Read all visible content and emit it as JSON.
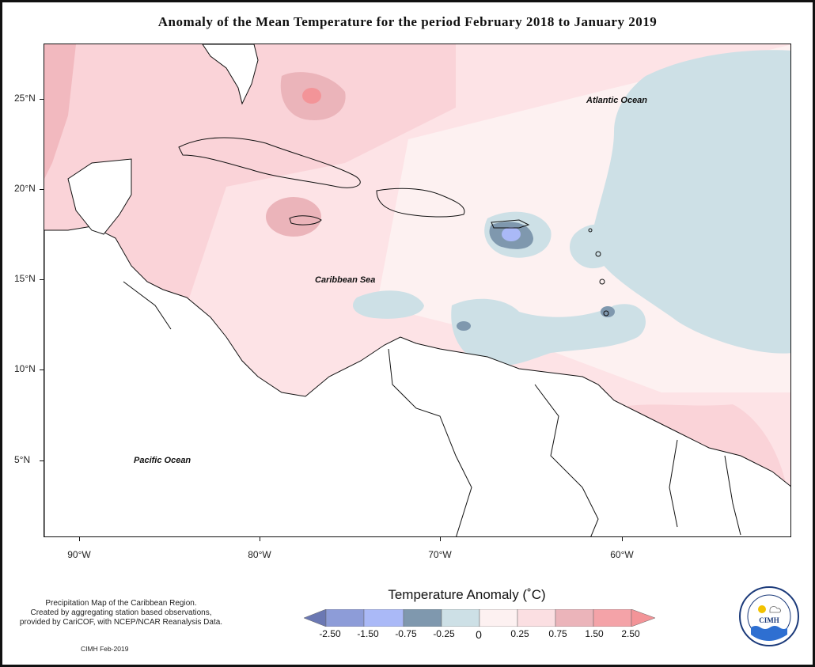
{
  "title": "Anomaly of the Mean Temperature for the period February 2018 to January 2019",
  "map": {
    "lat_labels": [
      "25°N",
      "20°N",
      "15°N",
      "10°N",
      "5°N"
    ],
    "lon_labels": [
      "90°W",
      "80°W",
      "70°W",
      "60°W"
    ],
    "place_labels": {
      "atlantic": "Atlantic Ocean",
      "caribbean": "Caribbean Sea",
      "pacific": "Pacific Ocean"
    }
  },
  "notes": {
    "line1": "Precipitation Map of the Caribbean Region.",
    "line2": "Created by aggregating station based observations,",
    "line3": "provided by CariCOF, with NCEP/NCAR Reanalysis Data."
  },
  "credit": "CIMH Feb-2019",
  "legend": {
    "title": "Temperature Anomaly (˚C)",
    "labels": [
      "-2.50",
      "-1.50",
      "-0.75",
      "-0.25",
      "0",
      "0.25",
      "0.75",
      "1.50",
      "2.50"
    ],
    "colors": [
      "#6b78b3",
      "#8d9cd8",
      "#aab9f7",
      "#7f98ae",
      "#cde0e6",
      "#fdf1f1",
      "#fbdfe2",
      "#ebb4ba",
      "#f39498"
    ]
  },
  "logo": {
    "name": "CIMH"
  }
}
